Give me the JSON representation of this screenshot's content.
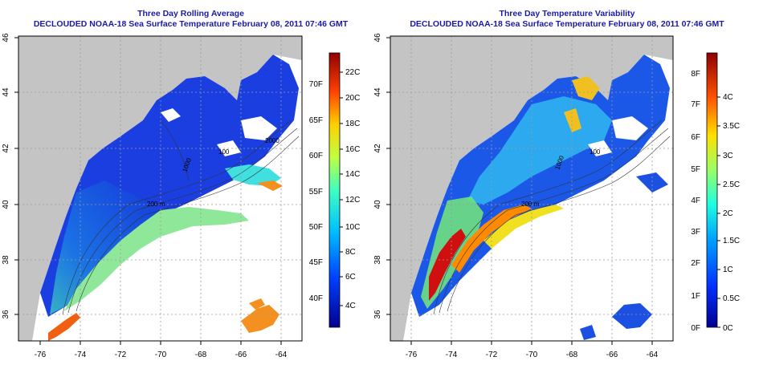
{
  "left_panel": {
    "title_line1": "Three Day Rolling Average",
    "title_line2": "DECLOUDED NOAA-18 Sea Surface Temperature February 08, 2011 07:46 GMT",
    "x_ticks": [
      "-76",
      "-74",
      "-72",
      "-70",
      "-68",
      "-66",
      "-64"
    ],
    "y_ticks": [
      "36",
      "38",
      "40",
      "42",
      "44",
      "46"
    ],
    "contour_labels": [
      "200 m",
      "100",
      "2000",
      "1000"
    ],
    "colorbar": {
      "fahrenheit_labels": [
        "40F",
        "45F",
        "50F",
        "55F",
        "60F",
        "65F",
        "70F"
      ],
      "celsius_labels": [
        "4C",
        "6C",
        "8C",
        "10C",
        "12C",
        "14C",
        "16C",
        "18C",
        "20C",
        "22C"
      ]
    }
  },
  "right_panel": {
    "title_line1": "Three Day Temperature Variability",
    "title_line2": "DECLOUDED NOAA-18 Sea Surface Temperature February 08, 2011 07:46 GMT",
    "x_ticks": [
      "-76",
      "-74",
      "-72",
      "-70",
      "-68",
      "-66",
      "-64"
    ],
    "y_ticks": [
      "36",
      "38",
      "40",
      "42",
      "44",
      "46"
    ],
    "contour_labels": [
      "200 m",
      "100",
      "1000"
    ],
    "colorbar": {
      "fahrenheit_labels": [
        "0F",
        "1F",
        "2F",
        "3F",
        "4F",
        "5F",
        "6F",
        "7F",
        "8F"
      ],
      "celsius_labels": [
        "0C",
        "0.5C",
        "1C",
        "1.5C",
        "2C",
        "2.5C",
        "3C",
        "3.5C",
        "4C"
      ]
    }
  },
  "colors": {
    "title": "#1a1aa8",
    "land": "#c4c4c4",
    "no_data": "#ffffff",
    "gridline": "#9a9a9a"
  }
}
